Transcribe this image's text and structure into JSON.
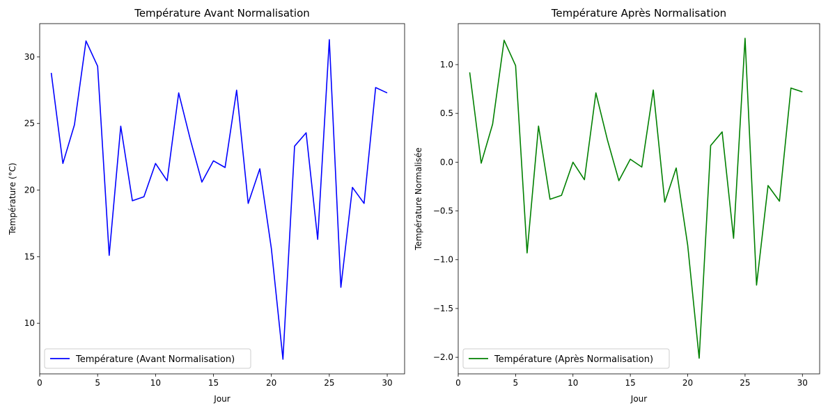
{
  "chart_data": [
    {
      "type": "line",
      "title": "Température Avant Normalisation",
      "xlabel": "Jour",
      "ylabel": "Température (°C)",
      "xlim": [
        0,
        31.5
      ],
      "ylim": [
        6.2,
        32.5
      ],
      "xticks": [
        0,
        5,
        10,
        15,
        20,
        25,
        30
      ],
      "yticks": [
        10,
        15,
        20,
        25,
        30
      ],
      "grid": false,
      "legend_position": "lower-left",
      "series": [
        {
          "name": "Température (Avant Normalisation)",
          "color": "#0000ff",
          "x": [
            1,
            2,
            3,
            4,
            5,
            6,
            7,
            8,
            9,
            10,
            11,
            12,
            13,
            14,
            15,
            16,
            17,
            18,
            19,
            20,
            21,
            22,
            23,
            24,
            25,
            26,
            27,
            28,
            29,
            30
          ],
          "values": [
            28.8,
            22.0,
            24.9,
            31.2,
            29.3,
            15.1,
            24.8,
            19.2,
            19.5,
            22.0,
            20.7,
            27.3,
            23.8,
            20.6,
            22.2,
            21.7,
            27.5,
            19.0,
            21.6,
            15.6,
            7.3,
            23.3,
            24.3,
            16.3,
            31.3,
            12.7,
            20.2,
            19.0,
            27.7,
            27.3
          ]
        }
      ]
    },
    {
      "type": "line",
      "title": "Température Après Normalisation",
      "xlabel": "Jour",
      "ylabel": "Température Normalisée",
      "xlim": [
        0,
        31.5
      ],
      "ylim": [
        -2.17,
        1.42
      ],
      "xticks": [
        0,
        5,
        10,
        15,
        20,
        25,
        30
      ],
      "yticks": [
        -2.0,
        -1.5,
        -1.0,
        -0.5,
        0.0,
        0.5,
        1.0
      ],
      "ytick_labels": [
        "−2.0",
        "−1.5",
        "−1.0",
        "−0.5",
        "0.0",
        "0.5",
        "1.0"
      ],
      "grid": false,
      "legend_position": "lower-left",
      "series": [
        {
          "name": "Température (Après Normalisation)",
          "color": "#008000",
          "x": [
            1,
            2,
            3,
            4,
            5,
            6,
            7,
            8,
            9,
            10,
            11,
            12,
            13,
            14,
            15,
            16,
            17,
            18,
            19,
            20,
            21,
            22,
            23,
            24,
            25,
            26,
            27,
            28,
            29,
            30
          ],
          "values": [
            0.92,
            -0.01,
            0.39,
            1.25,
            0.99,
            -0.93,
            0.37,
            -0.38,
            -0.34,
            0.0,
            -0.18,
            0.71,
            0.23,
            -0.19,
            0.03,
            -0.05,
            0.74,
            -0.41,
            -0.06,
            -0.85,
            -2.01,
            0.17,
            0.31,
            -0.78,
            1.27,
            -1.26,
            -0.24,
            -0.4,
            0.76,
            0.72
          ]
        }
      ]
    }
  ]
}
